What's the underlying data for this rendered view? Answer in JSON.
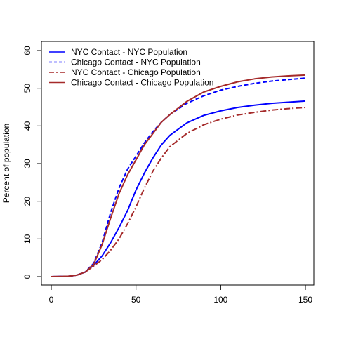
{
  "chart_data": {
    "type": "line",
    "title": "",
    "xlabel": "",
    "ylabel": "Percent of population",
    "xlim": [
      0,
      150
    ],
    "ylim": [
      0,
      60
    ],
    "x_ticks": [
      0,
      50,
      100,
      150
    ],
    "y_ticks": [
      0,
      10,
      20,
      30,
      40,
      50,
      60
    ],
    "grid": false,
    "legend_position": "top-left",
    "series": [
      {
        "name": "NYC Contact - NYC Population",
        "color": "#0000ff",
        "dash": "solid",
        "x": [
          0,
          10,
          15,
          20,
          25,
          30,
          35,
          40,
          45,
          50,
          55,
          60,
          65,
          70,
          80,
          90,
          100,
          110,
          120,
          130,
          140,
          150
        ],
        "y": [
          0,
          0.1,
          0.4,
          1.2,
          3.0,
          5.5,
          9.0,
          13.0,
          17.5,
          23.0,
          27.5,
          31.5,
          35.0,
          37.5,
          40.8,
          42.8,
          44.0,
          44.9,
          45.5,
          46.0,
          46.3,
          46.6
        ]
      },
      {
        "name": "Chicago Contact - NYC Population",
        "color": "#0000ff",
        "dash": "dashed",
        "x": [
          0,
          10,
          15,
          20,
          25,
          30,
          35,
          40,
          45,
          50,
          55,
          60,
          65,
          70,
          80,
          90,
          100,
          110,
          120,
          130,
          140,
          150
        ],
        "y": [
          0,
          0.1,
          0.4,
          1.2,
          3.5,
          9.0,
          17.0,
          23.5,
          28.5,
          32.0,
          35.5,
          38.5,
          41.0,
          43.0,
          46.0,
          48.0,
          49.5,
          50.5,
          51.3,
          51.9,
          52.3,
          52.7
        ]
      },
      {
        "name": "NYC Contact - Chicago Population",
        "color": "#a52a2a",
        "dash": "dashdot",
        "x": [
          0,
          10,
          15,
          20,
          25,
          30,
          35,
          40,
          45,
          50,
          55,
          60,
          65,
          70,
          80,
          90,
          100,
          110,
          120,
          130,
          140,
          150
        ],
        "y": [
          0,
          0.1,
          0.4,
          1.2,
          2.8,
          4.5,
          7.0,
          10.0,
          14.0,
          18.5,
          23.5,
          28.0,
          31.5,
          34.5,
          38.0,
          40.3,
          41.8,
          42.9,
          43.6,
          44.2,
          44.6,
          44.9
        ]
      },
      {
        "name": "Chicago Contact - Chicago Population",
        "color": "#a52a2a",
        "dash": "solid",
        "x": [
          0,
          10,
          15,
          20,
          25,
          30,
          35,
          40,
          45,
          50,
          55,
          60,
          65,
          70,
          80,
          90,
          100,
          110,
          120,
          130,
          140,
          150
        ],
        "y": [
          0,
          0.1,
          0.4,
          1.2,
          3.2,
          8.5,
          15.5,
          22.0,
          27.0,
          31.0,
          35.0,
          38.0,
          41.0,
          43.0,
          46.5,
          49.0,
          50.5,
          51.7,
          52.5,
          53.0,
          53.3,
          53.5
        ]
      }
    ]
  }
}
